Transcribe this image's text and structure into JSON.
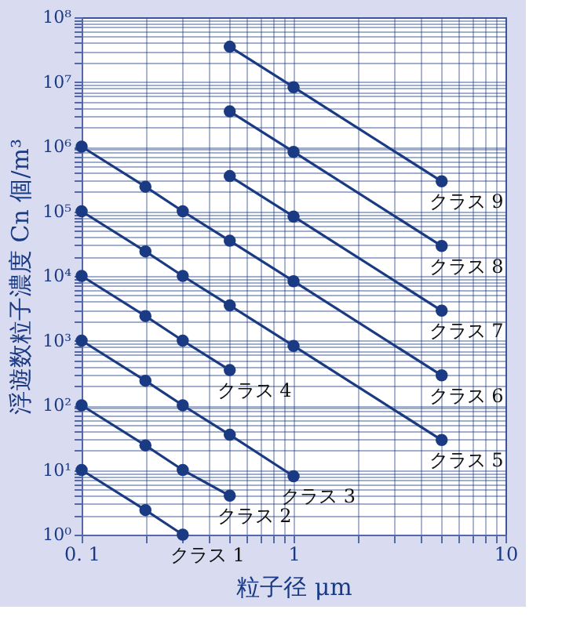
{
  "chart_data": {
    "type": "line",
    "xlabel": "粒子径 μm",
    "ylabel": "浮遊数粒子濃度 Cn 個/m³",
    "log": "xy",
    "grid": true,
    "marker": "circle",
    "line_style": "solid",
    "xlim": [
      0.1,
      10
    ],
    "ylim": [
      1,
      100000000
    ],
    "xticks": [
      {
        "value": 0.1,
        "label": "0. 1"
      },
      {
        "value": 0.2,
        "label": null
      },
      {
        "value": 0.3,
        "label": null
      },
      {
        "value": 0.4,
        "label": null
      },
      {
        "value": 0.5,
        "label": null
      },
      {
        "value": 0.6,
        "label": null
      },
      {
        "value": 0.7,
        "label": null
      },
      {
        "value": 0.8,
        "label": null
      },
      {
        "value": 0.9,
        "label": null
      },
      1,
      {
        "value": 2,
        "label": null
      },
      {
        "value": 3,
        "label": null
      },
      {
        "value": 4,
        "label": null
      },
      {
        "value": 5,
        "label": null
      },
      {
        "value": 6,
        "label": null
      },
      {
        "value": 7,
        "label": null
      },
      {
        "value": 8,
        "label": null
      },
      {
        "value": 9,
        "label": null
      },
      10
    ],
    "yticks": [
      {
        "value": 1,
        "label": "10⁰"
      },
      {
        "value": 2,
        "label": null
      },
      {
        "value": 3,
        "label": null
      },
      {
        "value": 4,
        "label": null
      },
      {
        "value": 5,
        "label": null
      },
      {
        "value": 6,
        "label": null
      },
      {
        "value": 7,
        "label": null
      },
      {
        "value": 8,
        "label": null
      },
      {
        "value": 9,
        "label": null
      },
      {
        "value": 10,
        "label": "10¹"
      },
      {
        "value": 20,
        "label": null
      },
      {
        "value": 30,
        "label": null
      },
      {
        "value": 40,
        "label": null
      },
      {
        "value": 50,
        "label": null
      },
      {
        "value": 60,
        "label": null
      },
      {
        "value": 70,
        "label": null
      },
      {
        "value": 80,
        "label": null
      },
      {
        "value": 90,
        "label": null
      },
      {
        "value": 100,
        "label": "10²"
      },
      {
        "value": 200,
        "label": null
      },
      {
        "value": 300,
        "label": null
      },
      {
        "value": 400,
        "label": null
      },
      {
        "value": 500,
        "label": null
      },
      {
        "value": 600,
        "label": null
      },
      {
        "value": 700,
        "label": null
      },
      {
        "value": 800,
        "label": null
      },
      {
        "value": 900,
        "label": null
      },
      {
        "value": 1000,
        "label": "10³"
      },
      {
        "value": 2000,
        "label": null
      },
      {
        "value": 3000,
        "label": null
      },
      {
        "value": 4000,
        "label": null
      },
      {
        "value": 5000,
        "label": null
      },
      {
        "value": 6000,
        "label": null
      },
      {
        "value": 7000,
        "label": null
      },
      {
        "value": 8000,
        "label": null
      },
      {
        "value": 9000,
        "label": null
      },
      {
        "value": 10000,
        "label": "10⁴"
      },
      {
        "value": 20000,
        "label": null
      },
      {
        "value": 30000,
        "label": null
      },
      {
        "value": 40000,
        "label": null
      },
      {
        "value": 50000,
        "label": null
      },
      {
        "value": 60000,
        "label": null
      },
      {
        "value": 70000,
        "label": null
      },
      {
        "value": 80000,
        "label": null
      },
      {
        "value": 90000,
        "label": null
      },
      {
        "value": 100000,
        "label": "10⁵"
      },
      {
        "value": 200000,
        "label": null
      },
      {
        "value": 300000,
        "label": null
      },
      {
        "value": 400000,
        "label": null
      },
      {
        "value": 500000,
        "label": null
      },
      {
        "value": 600000,
        "label": null
      },
      {
        "value": 700000,
        "label": null
      },
      {
        "value": 800000,
        "label": null
      },
      {
        "value": 900000,
        "label": null
      },
      {
        "value": 1000000,
        "label": "10⁶"
      },
      {
        "value": 2000000,
        "label": null
      },
      {
        "value": 3000000,
        "label": null
      },
      {
        "value": 4000000,
        "label": null
      },
      {
        "value": 5000000,
        "label": null
      },
      {
        "value": 6000000,
        "label": null
      },
      {
        "value": 7000000,
        "label": null
      },
      {
        "value": 8000000,
        "label": null
      },
      {
        "value": 9000000,
        "label": null
      },
      {
        "value": 10000000,
        "label": "10⁷"
      },
      {
        "value": 20000000,
        "label": null
      },
      {
        "value": 30000000,
        "label": null
      },
      {
        "value": 40000000,
        "label": null
      },
      {
        "value": 50000000,
        "label": null
      },
      {
        "value": 60000000,
        "label": null
      },
      {
        "value": 70000000,
        "label": null
      },
      {
        "value": 80000000,
        "label": null
      },
      {
        "value": 90000000,
        "label": null
      },
      {
        "value": 100000000,
        "label": "10⁸"
      }
    ],
    "series": [
      {
        "name": "クラス 1",
        "color": "#1b3a84",
        "x": [
          0.1,
          0.2,
          0.3
        ],
        "values": [
          10,
          2.4,
          1.0
        ]
      },
      {
        "name": "クラス 2",
        "color": "#1b3a84",
        "x": [
          0.1,
          0.2,
          0.3,
          0.5
        ],
        "values": [
          100,
          24,
          10,
          4
        ]
      },
      {
        "name": "クラス 3",
        "color": "#1b3a84",
        "x": [
          0.1,
          0.2,
          0.3,
          0.5,
          1
        ],
        "values": [
          1000,
          240,
          100,
          35,
          8
        ]
      },
      {
        "name": "クラス 4",
        "color": "#1b3a84",
        "x": [
          0.1,
          0.2,
          0.3,
          0.5
        ],
        "values": [
          10000,
          2400,
          1000,
          350
        ]
      },
      {
        "name": "クラス 5",
        "color": "#1b3a84",
        "x": [
          0.1,
          0.2,
          0.3,
          0.5,
          1,
          5
        ],
        "values": [
          100000,
          24000,
          10000,
          3500,
          830,
          29
        ]
      },
      {
        "name": "クラス 6",
        "color": "#1b3a84",
        "x": [
          0.1,
          0.2,
          0.3,
          0.5,
          1,
          5
        ],
        "values": [
          1000000,
          240000,
          100000,
          35000,
          8300,
          290
        ]
      },
      {
        "name": "クラス 7",
        "color": "#1b3a84",
        "x": [
          0.5,
          1,
          5
        ],
        "values": [
          350000,
          83000,
          2900
        ]
      },
      {
        "name": "クラス 8",
        "color": "#1b3a84",
        "x": [
          0.5,
          1,
          5
        ],
        "values": [
          3500000,
          830000,
          29000
        ]
      },
      {
        "name": "クラス 9",
        "color": "#1b3a84",
        "x": [
          0.5,
          1,
          5
        ],
        "values": [
          35000000,
          8300000,
          290000
        ]
      }
    ]
  }
}
